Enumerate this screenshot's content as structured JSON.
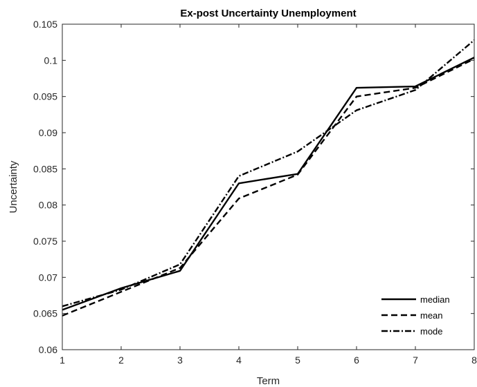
{
  "chart_data": {
    "type": "line",
    "title": "Ex-post Uncertainty Unemployment",
    "xlabel": "Term",
    "ylabel": "Uncertainty",
    "xlim": [
      1,
      8
    ],
    "ylim": [
      0.06,
      0.105
    ],
    "x_ticks": [
      "1",
      "2",
      "3",
      "4",
      "5",
      "6",
      "7",
      "8"
    ],
    "y_ticks": [
      "0.06",
      "0.065",
      "0.07",
      "0.075",
      "0.08",
      "0.085",
      "0.09",
      "0.095",
      "0.1",
      "0.105"
    ],
    "grid": false,
    "legend_position": "bottom-right",
    "x": [
      1,
      2,
      3,
      4,
      5,
      6,
      7,
      8
    ],
    "series": [
      {
        "name": "median",
        "style": "solid",
        "color": "#000000",
        "values": [
          0.0655,
          0.0685,
          0.0709,
          0.083,
          0.0843,
          0.0962,
          0.0964,
          0.1004
        ]
      },
      {
        "name": "mean",
        "style": "dashed",
        "color": "#000000",
        "values": [
          0.0647,
          0.068,
          0.0713,
          0.0809,
          0.0842,
          0.095,
          0.0962,
          0.1002
        ]
      },
      {
        "name": "mode",
        "style": "dashdot",
        "color": "#000000",
        "values": [
          0.066,
          0.0683,
          0.0718,
          0.084,
          0.0874,
          0.0931,
          0.0959,
          0.1028
        ]
      }
    ]
  }
}
